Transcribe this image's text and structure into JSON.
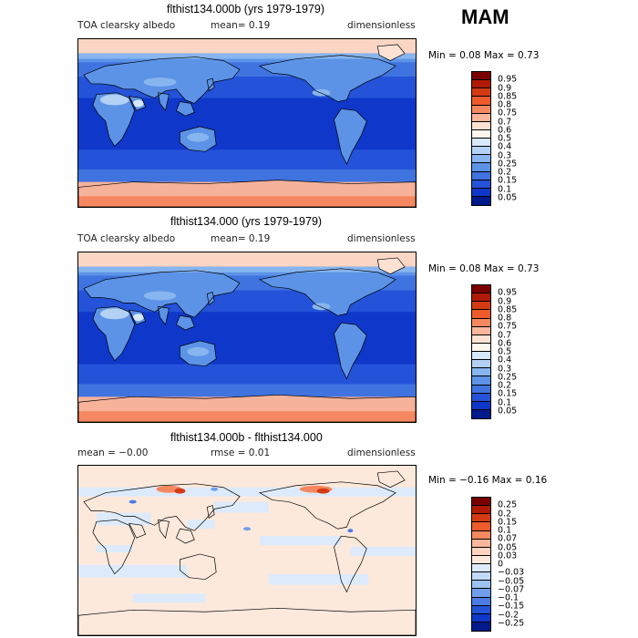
{
  "season": "MAM",
  "panels": [
    {
      "title": "flthist134.000b (yrs 1979-1979)",
      "label_left": "TOA clearsky albedo",
      "label_mid": "mean=   0.19",
      "label_right": "dimensionless",
      "minmax": "Min =    0.08  Max =    0.73",
      "map_style": "albedo",
      "colorbar": {
        "levels": [
          "0.95",
          "0.9",
          "0.85",
          "0.8",
          "0.75",
          "0.7",
          "0.6",
          "0.5",
          "0.4",
          "0.3",
          "0.25",
          "0.2",
          "0.15",
          "0.1",
          "0.05"
        ],
        "colors": [
          "#7a0000",
          "#b01a00",
          "#d33a14",
          "#ee5a2c",
          "#f58860",
          "#f9b69a",
          "#fde2d4",
          "#fff6ee",
          "#d6e8fb",
          "#b3d1f5",
          "#87b5ef",
          "#5c93e6",
          "#3f73e0",
          "#2452d8",
          "#0f37c9",
          "#001a8c"
        ]
      }
    },
    {
      "title": "flthist134.000 (yrs 1979-1979)",
      "label_left": "TOA clearsky albedo",
      "label_mid": "mean=   0.19",
      "label_right": "dimensionless",
      "minmax": "Min =    0.08  Max =    0.73",
      "map_style": "albedo",
      "colorbar": {
        "levels": [
          "0.95",
          "0.9",
          "0.85",
          "0.8",
          "0.75",
          "0.7",
          "0.6",
          "0.5",
          "0.4",
          "0.3",
          "0.25",
          "0.2",
          "0.15",
          "0.1",
          "0.05"
        ],
        "colors": [
          "#7a0000",
          "#b01a00",
          "#d33a14",
          "#ee5a2c",
          "#f58860",
          "#f9b69a",
          "#fde2d4",
          "#fff6ee",
          "#d6e8fb",
          "#b3d1f5",
          "#87b5ef",
          "#5c93e6",
          "#3f73e0",
          "#2452d8",
          "#0f37c9",
          "#001a8c"
        ]
      }
    },
    {
      "title": "flthist134.000b - flthist134.000",
      "label_left": "mean =   −0.00",
      "label_mid": "rmse =    0.01",
      "label_right": "dimensionless",
      "minmax": "Min =   −0.16  Max =    0.16",
      "map_style": "diff",
      "colorbar": {
        "levels": [
          "0.25",
          "0.2",
          "0.15",
          "0.1",
          "0.07",
          "0.05",
          "0.03",
          "0",
          "−0.03",
          "−0.05",
          "−0.07",
          "−0.1",
          "−0.15",
          "−0.2",
          "−0.25"
        ],
        "colors": [
          "#7a0000",
          "#b01a00",
          "#d33a14",
          "#ee5a2c",
          "#f58860",
          "#f9b69a",
          "#fcd3bf",
          "#fde9dc",
          "#dceafb",
          "#c2daf7",
          "#9cc2f1",
          "#6f9feb",
          "#4a7ce4",
          "#2452d8",
          "#0f37c9",
          "#001a8c"
        ]
      }
    }
  ]
}
